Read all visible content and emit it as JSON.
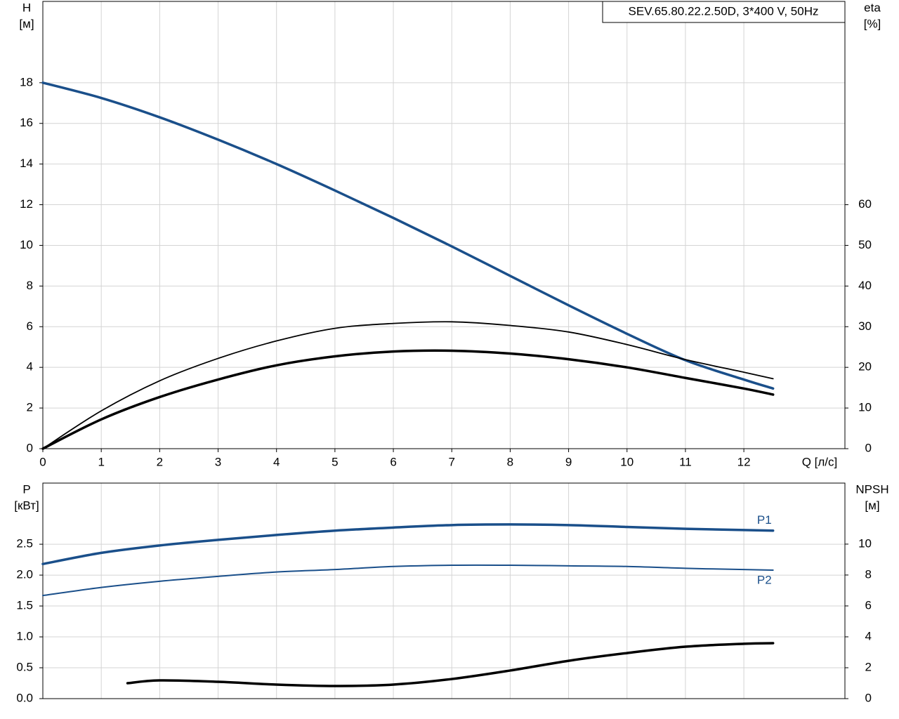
{
  "chart_data": [
    {
      "type": "line",
      "title": "SEV.65.80.22.2.50D, 3*400 V, 50Hz",
      "ylabel": [
        "H",
        "[м]"
      ],
      "y2label": [
        "eta",
        "[%]"
      ],
      "xlabel": "Q [л/с]",
      "x": [
        0,
        1,
        2,
        3,
        4,
        5,
        6,
        7,
        8,
        9,
        10,
        11,
        12,
        12.5
      ],
      "xlim": [
        0,
        13.73
      ],
      "xticks": [
        0,
        1,
        2,
        3,
        4,
        5,
        6,
        7,
        8,
        9,
        10,
        11,
        12
      ],
      "ylim": [
        0,
        22
      ],
      "yticks": [
        0,
        2,
        4,
        6,
        8,
        10,
        12,
        14,
        16,
        18
      ],
      "y2lim": [
        0,
        110
      ],
      "y2ticks": [
        0,
        10,
        20,
        30,
        40,
        50,
        60
      ],
      "grid": true,
      "series": [
        {
          "color": "#1a4f8a",
          "width": 3.5,
          "values": [
            18,
            17.25,
            16.3,
            15.2,
            14.0,
            12.7,
            11.35,
            9.95,
            8.5,
            7.05,
            5.65,
            4.35,
            3.4,
            2.96
          ]
        },
        {
          "color": "#000000",
          "width": 1.8,
          "axis": "y2",
          "values": [
            0,
            9.3,
            16.7,
            22.2,
            26.5,
            29.6,
            30.8,
            31.2,
            30.3,
            28.7,
            25.6,
            21.9,
            18.8,
            17.2
          ]
        },
        {
          "color": "#000000",
          "width": 3.5,
          "axis": "y2",
          "values": [
            0,
            7.2,
            12.7,
            17,
            20.5,
            22.7,
            23.9,
            24.1,
            23.4,
            22,
            20,
            17.4,
            14.8,
            13.3
          ]
        }
      ]
    },
    {
      "type": "line",
      "ylabel": [
        "P",
        "[кВт]"
      ],
      "y2label": [
        "NPSH",
        "[м]"
      ],
      "x": [
        0,
        1,
        2,
        3,
        4,
        5,
        6,
        7,
        8,
        9,
        10,
        11,
        12,
        12.5
      ],
      "xlim": [
        0,
        13.73
      ],
      "ylim": [
        0,
        3.49
      ],
      "yticks": [
        {
          "value": 0,
          "label": "0.0"
        },
        {
          "value": 0.5,
          "label": "0.5"
        },
        {
          "value": 1,
          "label": "1.0"
        },
        {
          "value": 1.5,
          "label": "1.5"
        },
        {
          "value": 2,
          "label": "2.0"
        },
        {
          "value": 2.5,
          "label": "2.5"
        }
      ],
      "y2lim": [
        0,
        13.95
      ],
      "y2ticks": [
        0,
        2,
        4,
        6,
        8,
        10
      ],
      "grid": true,
      "series": [
        {
          "name": "P1",
          "color": "#1a4f8a",
          "width": 3.5,
          "values": [
            2.18,
            2.36,
            2.48,
            2.57,
            2.65,
            2.72,
            2.77,
            2.81,
            2.82,
            2.81,
            2.78,
            2.75,
            2.73,
            2.72
          ]
        },
        {
          "name": "P2",
          "color": "#1a4f8a",
          "width": 2,
          "values": [
            1.67,
            1.8,
            1.9,
            1.98,
            2.05,
            2.09,
            2.14,
            2.16,
            2.16,
            2.15,
            2.14,
            2.11,
            2.09,
            2.08
          ]
        },
        {
          "color": "#000000",
          "width": 3.5,
          "axis": "y2",
          "x": [
            1.45,
            2,
            3,
            4,
            5,
            6,
            7,
            8,
            9,
            10,
            11,
            12,
            12.5
          ],
          "values": [
            1.0,
            1.18,
            1.09,
            0.91,
            0.82,
            0.91,
            1.27,
            1.82,
            2.45,
            2.95,
            3.36,
            3.55,
            3.59
          ]
        }
      ]
    }
  ]
}
